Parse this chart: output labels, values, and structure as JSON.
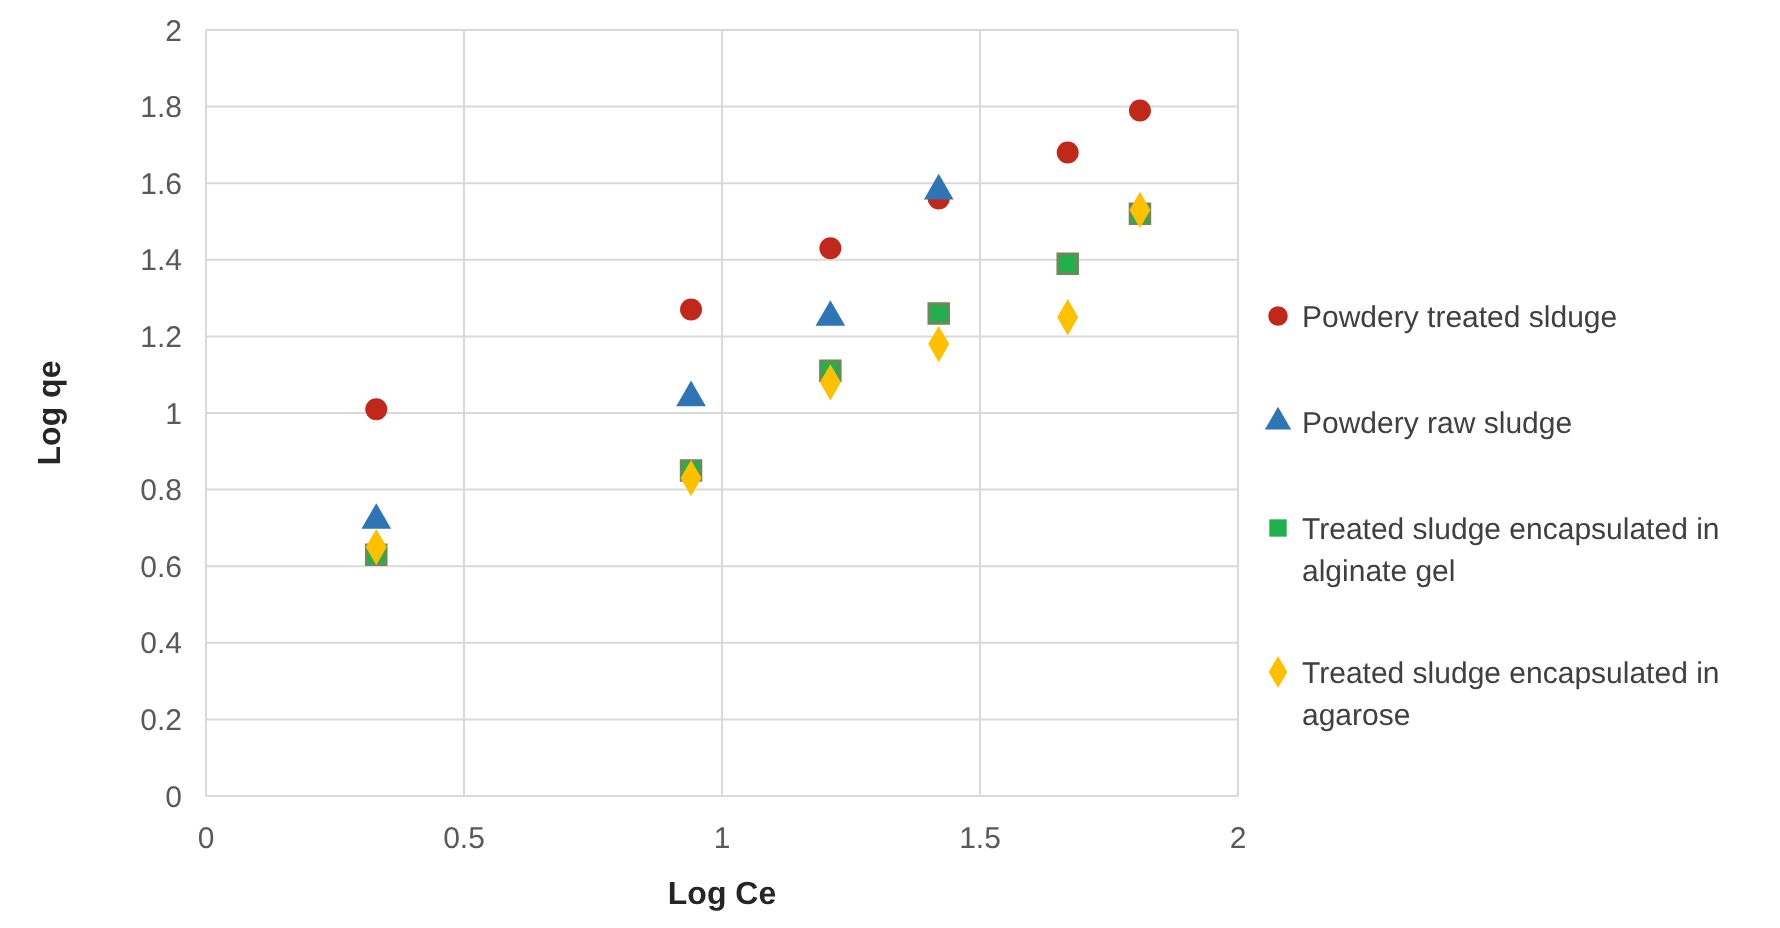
{
  "chart_data": {
    "type": "scatter",
    "xlabel": "Log Ce",
    "ylabel": "Log qe",
    "x": [
      0.33,
      0.94,
      1.21,
      1.42,
      1.67,
      1.81
    ],
    "xlim": [
      0,
      2
    ],
    "xticks": [
      0,
      0.5,
      1,
      1.5,
      2
    ],
    "ylim": [
      0,
      2
    ],
    "yticks": [
      0,
      0.2,
      0.4,
      0.6,
      0.8,
      1,
      1.2,
      1.4,
      1.6,
      1.8,
      2
    ],
    "grid": true,
    "legend": "right",
    "series": [
      {
        "name": "Powdery treated slduge",
        "color": "#c0281c",
        "marker": "circle",
        "values": [
          1.01,
          1.27,
          1.43,
          1.56,
          1.68,
          1.79
        ]
      },
      {
        "name": "Powdery raw sludge",
        "color": "#2e75b6",
        "marker": "triangle",
        "values": [
          0.72,
          1.04,
          1.25,
          1.58,
          null,
          null
        ]
      },
      {
        "name": "Treated sludge encapsulated in alginate gel",
        "color": "#22b04c",
        "marker": "square",
        "values": [
          0.63,
          0.85,
          1.11,
          1.26,
          1.39,
          1.52
        ]
      },
      {
        "name": "Treated sludge encapsulated in agarose",
        "color": "#ffc000",
        "marker": "diamond",
        "values": [
          0.65,
          0.83,
          1.08,
          1.18,
          1.25,
          1.53
        ]
      }
    ]
  }
}
